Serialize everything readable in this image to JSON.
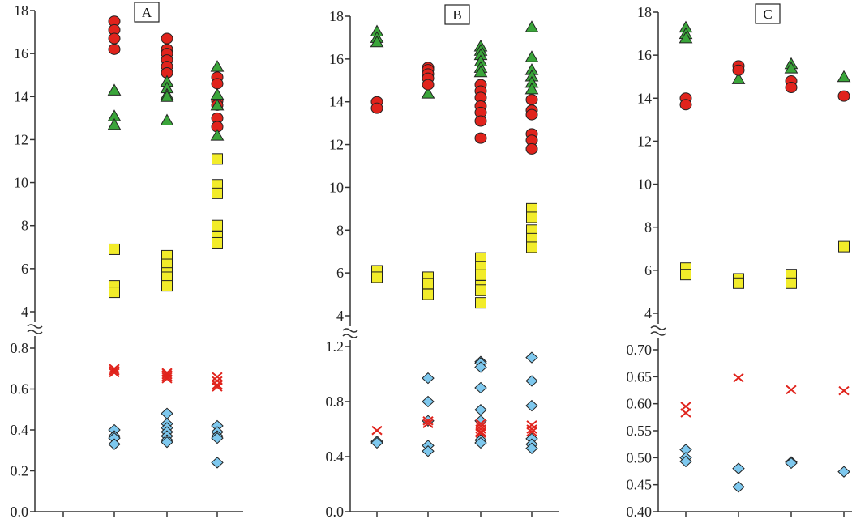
{
  "chart_data": [
    {
      "type": "scatter",
      "panel_label": "A",
      "upper_axis": {
        "ylim": [
          4,
          18
        ],
        "ticks": [
          "4",
          "6",
          "8",
          "10",
          "12",
          "14",
          "16",
          "18"
        ],
        "tick_values": [
          4,
          6,
          8,
          10,
          12,
          14,
          16,
          18
        ]
      },
      "lower_axis": {
        "ylim": [
          0,
          0.8
        ],
        "ticks": [
          "0.0",
          "0.2",
          "0.4",
          "0.6",
          "0.8"
        ],
        "tick_values": [
          0,
          0.2,
          0.4,
          0.6,
          0.8
        ]
      },
      "axis_break": true,
      "category_count": 4,
      "series": [
        {
          "marker": "circle",
          "color": "#e0231c",
          "axis": "upper",
          "points": [
            [
              2,
              17.5
            ],
            [
              2,
              17.1
            ],
            [
              2,
              16.7
            ],
            [
              2,
              16.2
            ],
            [
              3,
              16.7
            ],
            [
              3,
              16.2
            ],
            [
              3,
              16.0
            ],
            [
              3,
              15.7
            ],
            [
              3,
              15.4
            ],
            [
              3,
              15.1
            ],
            [
              4,
              14.9
            ],
            [
              4,
              14.6
            ],
            [
              4,
              13.8
            ],
            [
              4,
              13.6
            ],
            [
              4,
              13.0
            ],
            [
              4,
              12.6
            ]
          ]
        },
        {
          "marker": "triangle",
          "color": "#3aa53a",
          "axis": "upper",
          "points": [
            [
              2,
              14.3
            ],
            [
              2,
              13.1
            ],
            [
              2,
              12.7
            ],
            [
              3,
              14.7
            ],
            [
              3,
              14.4
            ],
            [
              3,
              14.1
            ],
            [
              3,
              14.0
            ],
            [
              3,
              12.9
            ],
            [
              4,
              15.4
            ],
            [
              4,
              14.1
            ],
            [
              4,
              13.6
            ],
            [
              4,
              12.2
            ]
          ]
        },
        {
          "marker": "square",
          "color": "#f2ec2a",
          "axis": "upper",
          "points": [
            [
              2,
              6.9
            ],
            [
              2,
              5.2
            ],
            [
              2,
              4.9
            ],
            [
              3,
              6.6
            ],
            [
              3,
              6.2
            ],
            [
              3,
              5.8
            ],
            [
              3,
              5.6
            ],
            [
              3,
              5.2
            ],
            [
              4,
              11.1
            ],
            [
              4,
              9.9
            ],
            [
              4,
              9.5
            ],
            [
              4,
              8.0
            ],
            [
              4,
              7.5
            ],
            [
              4,
              7.2
            ]
          ]
        },
        {
          "marker": "cross",
          "color": "#e0231c",
          "axis": "lower",
          "points": [
            [
              2,
              0.7
            ],
            [
              2,
              0.69
            ],
            [
              2,
              0.68
            ],
            [
              3,
              0.68
            ],
            [
              3,
              0.67
            ],
            [
              3,
              0.66
            ],
            [
              3,
              0.65
            ],
            [
              4,
              0.66
            ],
            [
              4,
              0.64
            ],
            [
              4,
              0.62
            ],
            [
              4,
              0.61
            ]
          ]
        },
        {
          "marker": "diamond",
          "color": "#7ec8ee",
          "axis": "lower",
          "points": [
            [
              2,
              0.4
            ],
            [
              2,
              0.37
            ],
            [
              2,
              0.36
            ],
            [
              2,
              0.33
            ],
            [
              3,
              0.48
            ],
            [
              3,
              0.43
            ],
            [
              3,
              0.41
            ],
            [
              3,
              0.39
            ],
            [
              3,
              0.37
            ],
            [
              3,
              0.35
            ],
            [
              3,
              0.34
            ],
            [
              4,
              0.42
            ],
            [
              4,
              0.39
            ],
            [
              4,
              0.37
            ],
            [
              4,
              0.36
            ],
            [
              4,
              0.24
            ]
          ]
        }
      ]
    },
    {
      "type": "scatter",
      "panel_label": "B",
      "upper_axis": {
        "ylim": [
          4,
          18
        ],
        "ticks": [
          "4",
          "6",
          "8",
          "10",
          "12",
          "14",
          "16",
          "18"
        ],
        "tick_values": [
          4,
          6,
          8,
          10,
          12,
          14,
          16,
          18
        ]
      },
      "lower_axis": {
        "ylim": [
          0,
          1.2
        ],
        "ticks": [
          "0.0",
          "0.4",
          "0.8",
          "1.2"
        ],
        "tick_values": [
          0,
          0.4,
          0.8,
          1.2
        ]
      },
      "axis_break": true,
      "category_count": 4,
      "series": [
        {
          "marker": "triangle",
          "color": "#3aa53a",
          "axis": "upper",
          "points": [
            [
              1,
              17.3
            ],
            [
              1,
              17.0
            ],
            [
              1,
              16.8
            ],
            [
              2,
              14.4
            ],
            [
              3,
              16.6
            ],
            [
              3,
              16.4
            ],
            [
              3,
              16.2
            ],
            [
              3,
              15.9
            ],
            [
              3,
              15.6
            ],
            [
              3,
              15.4
            ],
            [
              4,
              17.5
            ],
            [
              4,
              16.1
            ],
            [
              4,
              15.5
            ],
            [
              4,
              15.2
            ],
            [
              4,
              14.9
            ],
            [
              4,
              14.6
            ]
          ]
        },
        {
          "marker": "circle",
          "color": "#e0231c",
          "axis": "upper",
          "points": [
            [
              1,
              14.0
            ],
            [
              1,
              13.7
            ],
            [
              2,
              15.6
            ],
            [
              2,
              15.5
            ],
            [
              2,
              15.3
            ],
            [
              2,
              15.1
            ],
            [
              2,
              14.8
            ],
            [
              3,
              14.8
            ],
            [
              3,
              14.5
            ],
            [
              3,
              14.2
            ],
            [
              3,
              13.8
            ],
            [
              3,
              13.5
            ],
            [
              3,
              13.1
            ],
            [
              3,
              12.3
            ],
            [
              4,
              14.1
            ],
            [
              4,
              13.6
            ],
            [
              4,
              13.4
            ],
            [
              4,
              12.5
            ],
            [
              4,
              12.2
            ],
            [
              4,
              11.8
            ]
          ]
        },
        {
          "marker": "square",
          "color": "#f2ec2a",
          "axis": "upper",
          "points": [
            [
              1,
              6.1
            ],
            [
              1,
              5.8
            ],
            [
              2,
              5.8
            ],
            [
              2,
              5.5
            ],
            [
              2,
              5.0
            ],
            [
              3,
              6.7
            ],
            [
              3,
              6.3
            ],
            [
              3,
              5.9
            ],
            [
              3,
              5.4
            ],
            [
              3,
              5.2
            ],
            [
              3,
              4.6
            ],
            [
              4,
              9.0
            ],
            [
              4,
              8.6
            ],
            [
              4,
              8.0
            ],
            [
              4,
              7.6
            ],
            [
              4,
              7.2
            ]
          ]
        },
        {
          "marker": "diamond",
          "color": "#7ec8ee",
          "axis": "lower",
          "points": [
            [
              1,
              0.51
            ],
            [
              1,
              0.5
            ],
            [
              2,
              0.97
            ],
            [
              2,
              0.8
            ],
            [
              2,
              0.66
            ],
            [
              2,
              0.48
            ],
            [
              2,
              0.44
            ],
            [
              3,
              1.09
            ],
            [
              3,
              1.08
            ],
            [
              3,
              1.05
            ],
            [
              3,
              0.9
            ],
            [
              3,
              0.74
            ],
            [
              3,
              0.66
            ],
            [
              3,
              0.52
            ],
            [
              3,
              0.5
            ],
            [
              4,
              1.12
            ],
            [
              4,
              0.95
            ],
            [
              4,
              0.77
            ],
            [
              4,
              0.53
            ],
            [
              4,
              0.49
            ],
            [
              4,
              0.46
            ]
          ]
        },
        {
          "marker": "cross",
          "color": "#e0231c",
          "axis": "lower",
          "points": [
            [
              1,
              0.59
            ],
            [
              2,
              0.66
            ],
            [
              2,
              0.64
            ],
            [
              3,
              0.64
            ],
            [
              3,
              0.62
            ],
            [
              3,
              0.6
            ],
            [
              3,
              0.58
            ],
            [
              3,
              0.57
            ],
            [
              4,
              0.63
            ],
            [
              4,
              0.6
            ],
            [
              4,
              0.58
            ]
          ]
        }
      ]
    },
    {
      "type": "scatter",
      "panel_label": "C",
      "upper_axis": {
        "ylim": [
          4,
          18
        ],
        "ticks": [
          "4",
          "6",
          "8",
          "10",
          "12",
          "14",
          "16",
          "18"
        ],
        "tick_values": [
          4,
          6,
          8,
          10,
          12,
          14,
          16,
          18
        ]
      },
      "lower_axis": {
        "ylim": [
          0.4,
          0.7
        ],
        "ticks": [
          "0.40",
          "0.45",
          "0.50",
          "0.55",
          "0.60",
          "0.65",
          "0.70"
        ],
        "tick_values": [
          0.4,
          0.45,
          0.5,
          0.55,
          0.6,
          0.65,
          0.7
        ]
      },
      "axis_break": true,
      "category_count": 4,
      "series": [
        {
          "marker": "triangle",
          "color": "#3aa53a",
          "axis": "upper",
          "points": [
            [
              1,
              17.3
            ],
            [
              1,
              17.0
            ],
            [
              1,
              16.8
            ],
            [
              2,
              14.9
            ],
            [
              3,
              15.6
            ],
            [
              3,
              15.4
            ],
            [
              4,
              15.0
            ]
          ]
        },
        {
          "marker": "circle",
          "color": "#e0231c",
          "axis": "upper",
          "points": [
            [
              1,
              14.0
            ],
            [
              1,
              13.7
            ],
            [
              2,
              15.5
            ],
            [
              2,
              15.3
            ],
            [
              3,
              14.8
            ],
            [
              3,
              14.5
            ],
            [
              4,
              14.1
            ]
          ]
        },
        {
          "marker": "square",
          "color": "#f2ec2a",
          "axis": "upper",
          "points": [
            [
              1,
              6.1
            ],
            [
              1,
              5.8
            ],
            [
              2,
              5.6
            ],
            [
              2,
              5.4
            ],
            [
              3,
              5.8
            ],
            [
              3,
              5.4
            ],
            [
              4,
              7.1
            ]
          ]
        },
        {
          "marker": "cross",
          "color": "#e0231c",
          "axis": "lower",
          "points": [
            [
              1,
              0.595
            ],
            [
              1,
              0.583
            ],
            [
              2,
              0.648
            ],
            [
              3,
              0.626
            ],
            [
              4,
              0.624
            ]
          ]
        },
        {
          "marker": "diamond",
          "color": "#7ec8ee",
          "axis": "lower",
          "points": [
            [
              1,
              0.515
            ],
            [
              1,
              0.5
            ],
            [
              1,
              0.493
            ],
            [
              2,
              0.48
            ],
            [
              2,
              0.446
            ],
            [
              3,
              0.492
            ],
            [
              3,
              0.49
            ],
            [
              4,
              0.474
            ]
          ]
        }
      ]
    }
  ]
}
